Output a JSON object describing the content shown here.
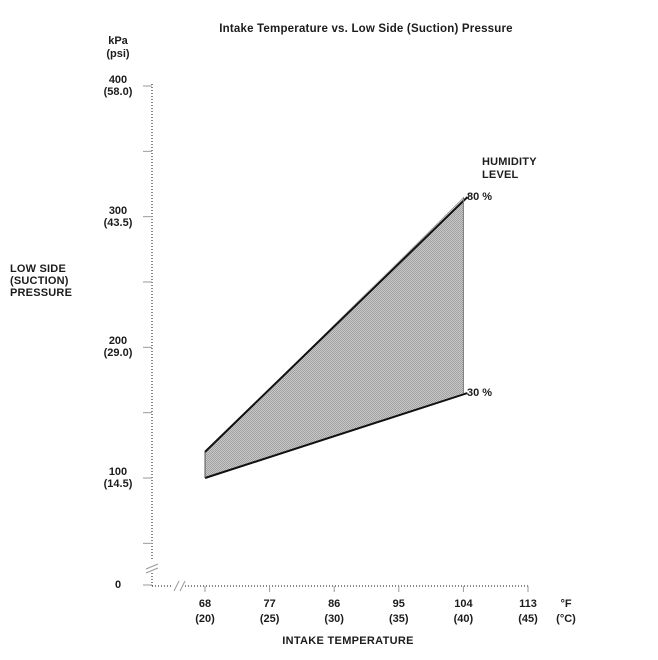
{
  "title": "Intake Temperature vs. Low Side (Suction) Pressure",
  "y_axis": {
    "unit_lines": [
      "kPa",
      "(psi)"
    ],
    "name_lines": [
      "LOW SIDE",
      "(SUCTION)",
      "PRESSURE"
    ]
  },
  "x_axis": {
    "name": "INTAKE TEMPERATURE",
    "unit_lines": [
      "°F",
      "(°C)"
    ]
  },
  "legend": {
    "title_lines": [
      "HUMIDITY",
      "LEVEL"
    ]
  },
  "colors": {
    "text": "#1c1c1c",
    "band_dark": "#a0a0a0",
    "band_light": "#c9c9c9",
    "band_edge": "#111111",
    "axis": "#3a3a3a",
    "tick": "#9a9a9a",
    "background": "#ffffff"
  },
  "chart_data": {
    "type": "area",
    "title": "Intake Temperature vs. Low Side (Suction) Pressure",
    "xlabel": "INTAKE TEMPERATURE",
    "ylabel": "LOW SIDE (SUCTION) PRESSURE",
    "x_unit": "°F (°C)",
    "y_unit": "kPa (psi)",
    "legend_title": "HUMIDITY LEVEL",
    "x": [
      68,
      104
    ],
    "series": [
      {
        "name": "80 %",
        "humidity_percent": 80,
        "values_kpa": [
          120,
          315
        ]
      },
      {
        "name": "30 %",
        "humidity_percent": 30,
        "values_kpa": [
          100,
          165
        ]
      }
    ],
    "band": "shaded halftone region between the 30 % and 80 % humidity lines",
    "x_ticks": [
      {
        "f": 68,
        "c": 20
      },
      {
        "f": 77,
        "c": 25
      },
      {
        "f": 86,
        "c": 30
      },
      {
        "f": 95,
        "c": 35
      },
      {
        "f": 104,
        "c": 40
      },
      {
        "f": 113,
        "c": 45
      }
    ],
    "y_ticks": [
      {
        "kpa": 400,
        "psi": "58.0"
      },
      {
        "kpa": 300,
        "psi": "43.5"
      },
      {
        "kpa": 200,
        "psi": "29.0"
      },
      {
        "kpa": 100,
        "psi": "14.5"
      },
      {
        "kpa": 0
      }
    ],
    "y_minor_ticks_kpa": [
      350,
      250,
      150,
      50
    ],
    "xlim": [
      68,
      113
    ],
    "ylim": [
      0,
      400
    ],
    "axis_breaks": {
      "x_axis": true,
      "y_axis": true
    },
    "grid": false,
    "legend_position": "upper-right"
  }
}
